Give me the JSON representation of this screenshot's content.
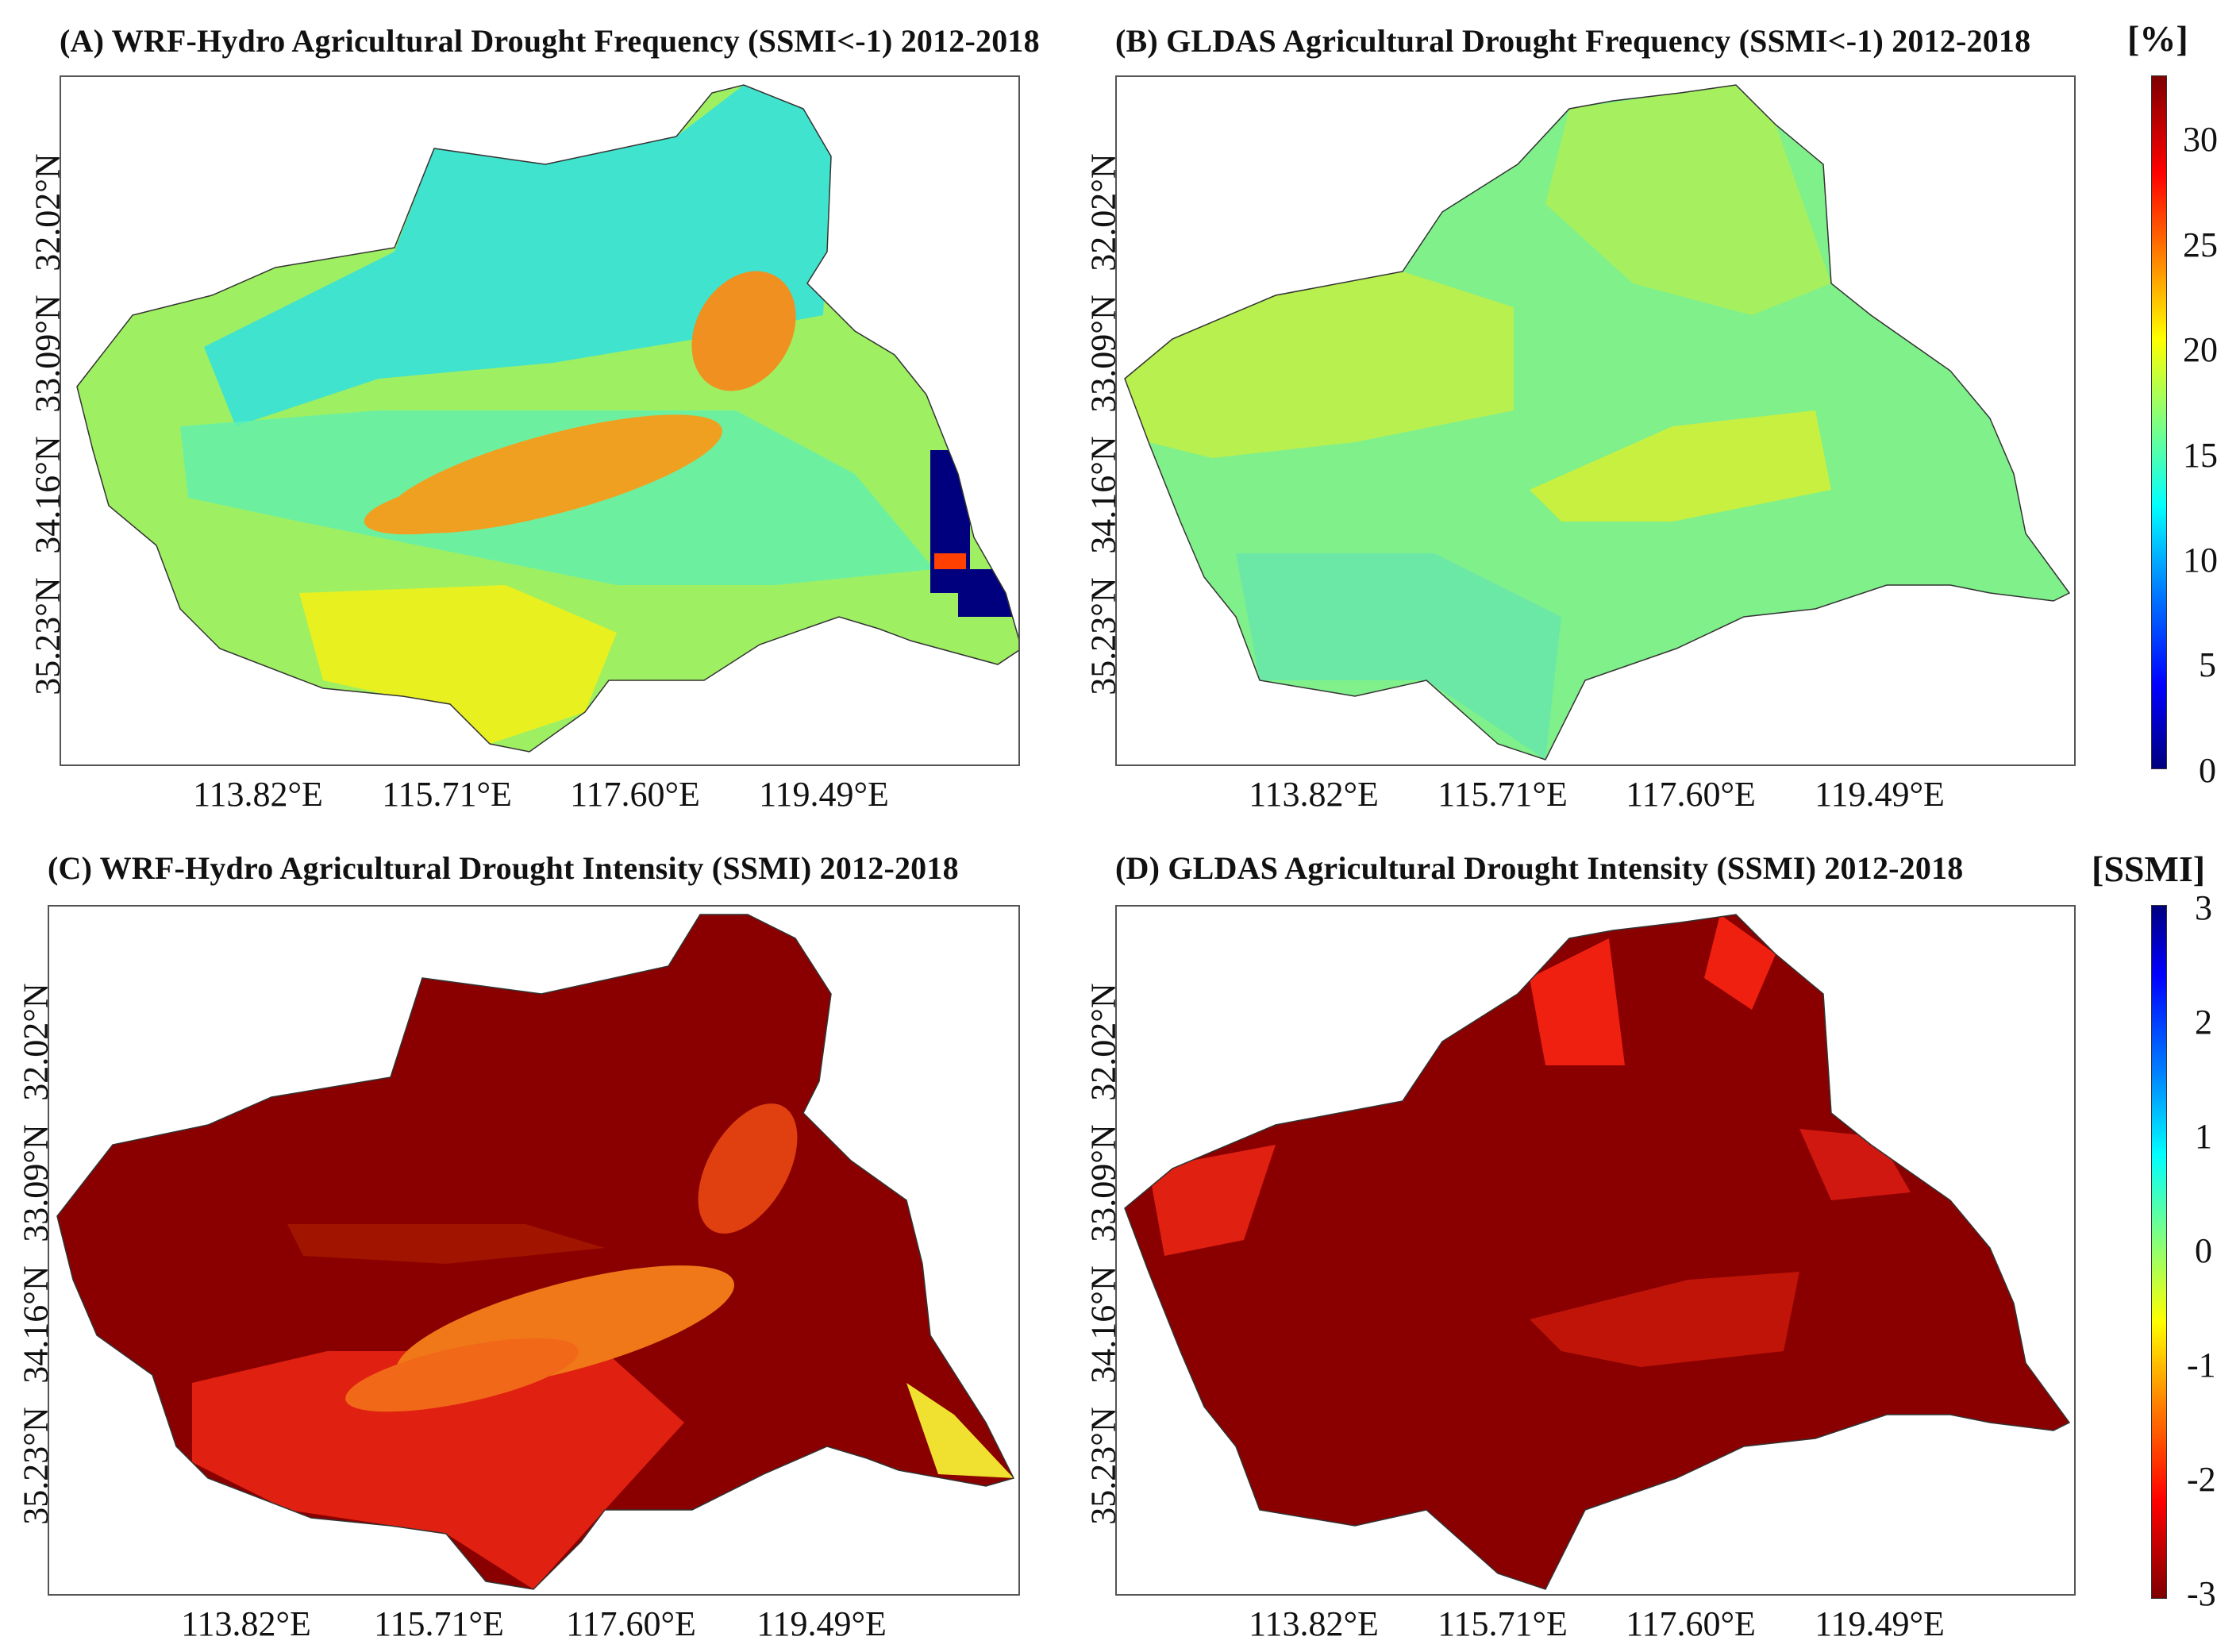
{
  "panels": [
    {
      "id": "A",
      "title": "(A) WRF-Hydro Agricultural Drought Frequency (SSMI<-1) 2012-2018",
      "variable": "frequency",
      "source": "WRF-Hydro"
    },
    {
      "id": "B",
      "title": "(B) GLDAS Agricultural Drought Frequency (SSMI<-1) 2012-2018",
      "variable": "frequency",
      "source": "GLDAS"
    },
    {
      "id": "C",
      "title": "(C) WRF-Hydro Agricultural Drought Intensity (SSMI) 2012-2018",
      "variable": "intensity",
      "source": "WRF-Hydro"
    },
    {
      "id": "D",
      "title": "(D) GLDAS Agricultural Drought Intensity (SSMI) 2012-2018",
      "variable": "intensity",
      "source": "GLDAS"
    }
  ],
  "axes": {
    "x_ticks": [
      "113.82°E",
      "115.71°E",
      "117.60°E",
      "119.49°E"
    ],
    "y_ticks": [
      "32.02°N",
      "33.09°N",
      "34.16°N",
      "35.23°N"
    ]
  },
  "colorbars": {
    "frequency": {
      "unit": "[%]",
      "ticks": [
        "30",
        "25",
        "20",
        "15",
        "10",
        "5",
        "0"
      ],
      "min": 0,
      "max": 33
    },
    "intensity": {
      "unit": "[SSMI]",
      "ticks": [
        "3",
        "2",
        "1",
        "0",
        "-1",
        "-2",
        "-3"
      ],
      "min": -3,
      "max": 3
    }
  },
  "colors": {
    "jet": [
      "#00007f",
      "#0000ff",
      "#0080ff",
      "#00ffff",
      "#80ff80",
      "#ffff00",
      "#ff8000",
      "#ff0000",
      "#7f0000"
    ],
    "basin_outline": "#333333"
  },
  "map_values": {
    "A": {
      "dominant_percent": 15,
      "hotspot_percent": 24
    },
    "B": {
      "dominant_percent": 16,
      "hotspot_percent": 19
    },
    "C": {
      "dominant_ssmi": -3,
      "hotspot_ssmi": -1.8
    },
    "D": {
      "dominant_ssmi": -3,
      "hotspot_ssmi": -2.5
    }
  }
}
